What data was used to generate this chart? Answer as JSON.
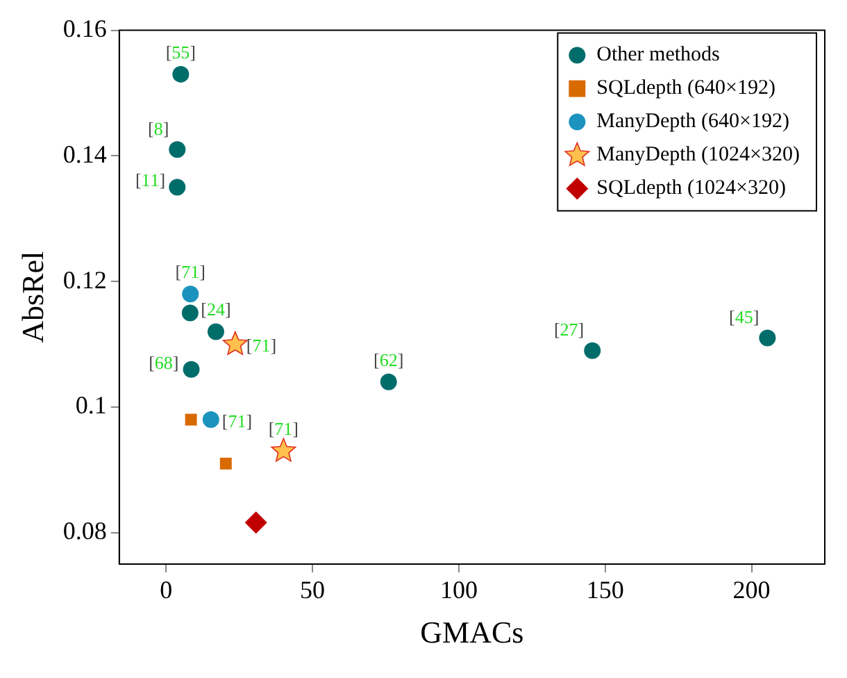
{
  "chart_data": {
    "type": "scatter",
    "xlabel": "GMACs",
    "ylabel": "AbsRel",
    "xlim": [
      -16,
      225
    ],
    "xticks": [
      0,
      50,
      100,
      150,
      200
    ],
    "ylim": [
      0.075,
      0.16
    ],
    "yticks": [
      0.08,
      0.1,
      0.12,
      0.14,
      0.16
    ],
    "grid": false,
    "legend": "top right",
    "series": [
      {
        "name": "Other methods",
        "color": "#006d6b",
        "marker": "circle",
        "x": [
          5,
          3.8,
          3.8,
          8.2,
          17,
          8.6,
          76,
          145.6,
          205.4
        ],
        "values": [
          0.153,
          0.141,
          0.135,
          0.115,
          0.112,
          0.106,
          0.104,
          0.109,
          0.111
        ]
      },
      {
        "name": "SQLdepth (640×192)",
        "color": "#d86a00",
        "marker": "square",
        "x": [
          8.5,
          20.4
        ],
        "values": [
          0.098,
          0.091
        ]
      },
      {
        "name": "ManyDepth (640×192)",
        "color": "#1b93be",
        "marker": "circle",
        "x": [
          8.3,
          15.3
        ],
        "values": [
          0.118,
          0.098
        ]
      },
      {
        "name": "ManyDepth (1024×320)",
        "color": "#ffc04d",
        "marker": "star",
        "x": [
          23.6,
          40.1
        ],
        "values": [
          0.11,
          0.093
        ]
      },
      {
        "name": "SQLdepth (1024×320)",
        "color": "#c00000",
        "marker": "diamond",
        "x": [
          30.7
        ],
        "values": [
          0.0816
        ]
      }
    ],
    "annotations": [
      {
        "text": "[55]",
        "x": 5,
        "y": 0.153
      },
      {
        "text": "[8]",
        "x": 3.8,
        "y": 0.141
      },
      {
        "text": "[11]",
        "x": 3.8,
        "y": 0.135
      },
      {
        "text": "[71]",
        "x": 8.3,
        "y": 0.118
      },
      {
        "text": "[24]",
        "x": 17,
        "y": 0.112
      },
      {
        "text": "[71]",
        "x": 23.6,
        "y": 0.11
      },
      {
        "text": "[68]",
        "x": 8.6,
        "y": 0.106
      },
      {
        "text": "[62]",
        "x": 76,
        "y": 0.104
      },
      {
        "text": "[71]",
        "x": 15.3,
        "y": 0.098
      },
      {
        "text": "[71]",
        "x": 40.1,
        "y": 0.093
      },
      {
        "text": "[27]",
        "x": 145.6,
        "y": 0.109
      },
      {
        "text": "[45]",
        "x": 205.4,
        "y": 0.111
      }
    ]
  }
}
